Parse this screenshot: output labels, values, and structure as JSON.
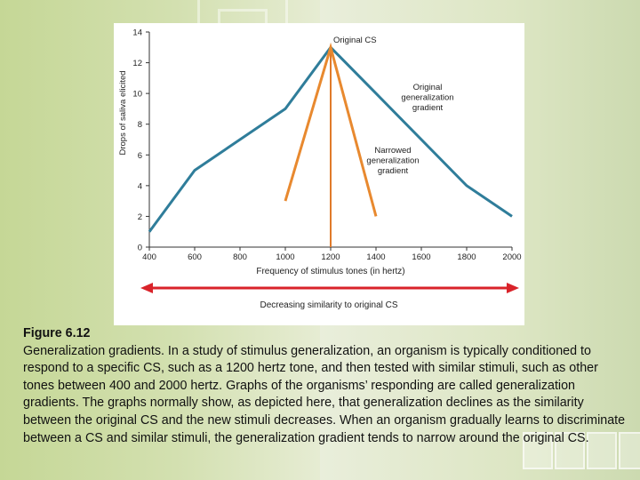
{
  "chart_data": {
    "type": "line",
    "xlabel": "Frequency of stimulus tones (in hertz)",
    "ylabel": "Drops of saliva elicited",
    "xlim": [
      400,
      2000
    ],
    "ylim": [
      0,
      14
    ],
    "x_ticks": [
      400,
      600,
      800,
      1000,
      1200,
      1400,
      1600,
      1800,
      2000
    ],
    "y_ticks": [
      0,
      2,
      4,
      6,
      8,
      10,
      12,
      14
    ],
    "grid": false,
    "series": [
      {
        "name": "Original generalization gradient",
        "color": "#2f7d9a",
        "x": [
          400,
          600,
          1000,
          1200,
          1400,
          1800,
          2000
        ],
        "y": [
          1,
          5,
          9,
          13,
          10,
          4,
          2
        ]
      },
      {
        "name": "Narrowed generalization gradient",
        "color": "#e8892f",
        "x": [
          1000,
          1200,
          1400
        ],
        "y": [
          3,
          13,
          2
        ]
      }
    ],
    "annotations": [
      {
        "lines": [
          "Original CS"
        ]
      },
      {
        "lines": [
          "Original",
          "generalization",
          "gradient"
        ]
      },
      {
        "lines": [
          "Narrowed",
          "generalization",
          "gradient"
        ]
      }
    ],
    "cs_marker_x": 1200,
    "cs_marker_color": "#e07a2a",
    "similarity_arrow": {
      "label": "Decreasing similarity to original CS",
      "color": "#d9232a"
    }
  },
  "caption": {
    "title": "Figure 6.12",
    "body": "Generalization gradients. In a study of stimulus generalization, an organism is typically conditioned to respond to a specific CS, such as a 1200 hertz tone, and then tested with similar stimuli, such as other tones between 400 and 2000 hertz. Graphs of the organisms’ responding are called generalization gradients. The graphs normally show, as depicted here, that generalization declines as the similarity between the original CS and the new stimuli decreases. When an organism gradually learns to discriminate between a CS and similar stimuli, the generalization gradient tends to narrow around the original CS."
  }
}
